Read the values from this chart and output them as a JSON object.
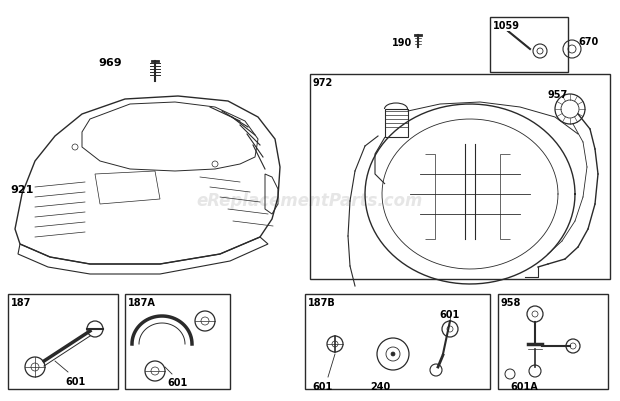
{
  "background_color": "#ffffff",
  "watermark": "eReplacementParts.com",
  "watermark_color": "#c8c8c8",
  "watermark_alpha": 0.45,
  "gray": "#2a2a2a",
  "figsize": [
    6.2,
    4.02
  ],
  "dpi": 100,
  "layout": {
    "shroud_label": "921",
    "screw_label": "969",
    "box1059_label": "1059",
    "part190_label": "190",
    "part670_label": "670",
    "box972_label": "972",
    "part957_label": "957",
    "box187_label": "187",
    "box187a_label": "187A",
    "box187b_label": "187B",
    "box958_label": "958",
    "sub601": "601",
    "sub601a": "601A",
    "sub240": "240"
  }
}
